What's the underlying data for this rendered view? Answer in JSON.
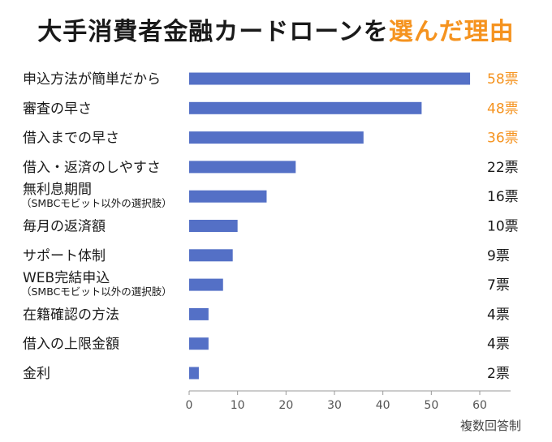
{
  "title": {
    "main": "大手消費者金融カードローンを",
    "accent": "選んだ理由"
  },
  "note": "複数回答制",
  "colors": {
    "bar": "#5470c6",
    "accent": "#f5931f",
    "text": "#1a1a1a",
    "axis": "#999999"
  },
  "chart_data": {
    "type": "bar",
    "orientation": "horizontal",
    "categories": [
      {
        "label": "申込方法が簡単だから",
        "sub": ""
      },
      {
        "label": "審査の早さ",
        "sub": ""
      },
      {
        "label": "借入までの早さ",
        "sub": ""
      },
      {
        "label": "借入・返済のしやすさ",
        "sub": ""
      },
      {
        "label": "無利息期間",
        "sub": "（SMBCモビット以外の選択肢）"
      },
      {
        "label": "毎月の返済額",
        "sub": ""
      },
      {
        "label": "サポート体制",
        "sub": ""
      },
      {
        "label": "WEB完結申込",
        "sub": "（SMBCモビット以外の選択肢）"
      },
      {
        "label": "在籍確認の方法",
        "sub": ""
      },
      {
        "label": "借入の上限金額",
        "sub": ""
      },
      {
        "label": "金利",
        "sub": ""
      }
    ],
    "values": [
      58,
      48,
      36,
      22,
      16,
      10,
      9,
      7,
      4,
      4,
      2
    ],
    "value_labels": [
      "58票",
      "48票",
      "36票",
      "22票",
      "16票",
      "10票",
      "9票",
      "7票",
      "4票",
      "4票",
      "2票"
    ],
    "highlight_top": 3,
    "xlim": [
      0,
      60
    ],
    "xticks": [
      0,
      10,
      20,
      30,
      40,
      50,
      60
    ],
    "grid": false
  }
}
